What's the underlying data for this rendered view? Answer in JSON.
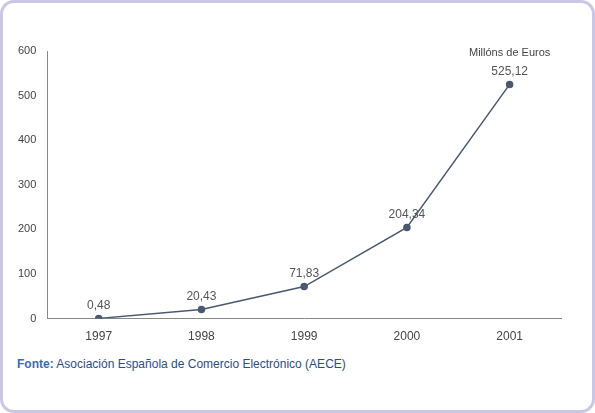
{
  "chart_data": {
    "type": "line",
    "ylabel": "Millóns de Euros",
    "categories": [
      "1997",
      "1998",
      "1999",
      "2000",
      "2001"
    ],
    "values": [
      0.48,
      20.43,
      71.83,
      204.34,
      525.12
    ],
    "value_labels": [
      "0,48",
      "20,43",
      "71,83",
      "204,34",
      "525,12"
    ],
    "data_labels": true,
    "color": "#4a5870",
    "marker": "circle",
    "ylim": [
      0,
      600
    ],
    "yticks": [
      0,
      100,
      200,
      300,
      400,
      500,
      600
    ],
    "grid": false,
    "source_label": "Fonte:",
    "source": "Asociación Española de Comercio Electrónico (AECE)"
  }
}
